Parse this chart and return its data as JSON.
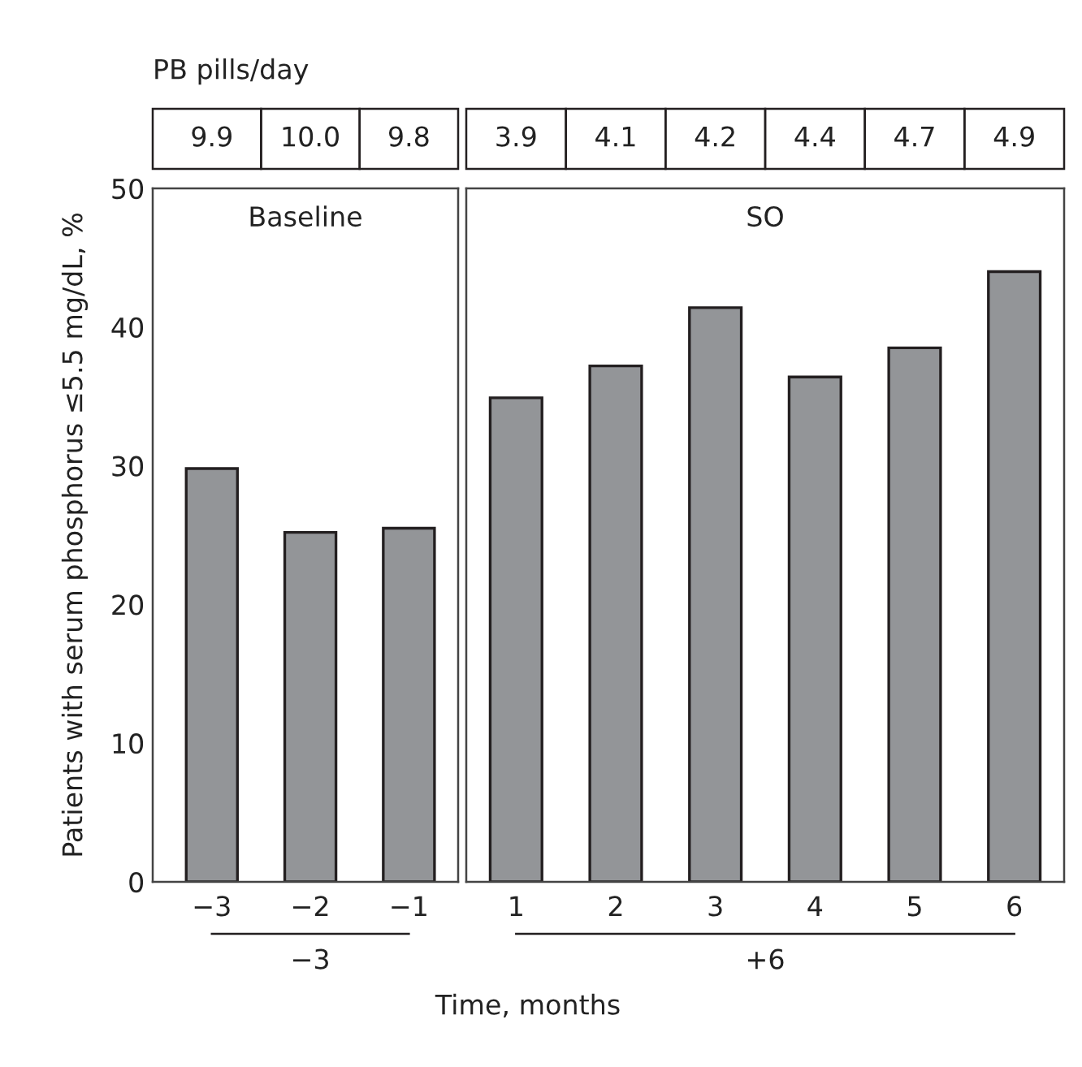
{
  "chart_data": [
    {
      "type": "bar",
      "title": "Baseline",
      "ylabel": "Patients with serum phosphorus ≤5.5 mg/dL, %",
      "xlabel": "Time, months",
      "categories": [
        "−3",
        "−2",
        "−1"
      ],
      "values": [
        29.8,
        25.2,
        25.5
      ],
      "color": "#939598",
      "ylim": [
        0,
        50
      ],
      "yticks": [
        0,
        10,
        20,
        30,
        40,
        50
      ],
      "grid": false,
      "annotations": [
        "PB pills/day",
        "9.9",
        "10.0",
        "9.8",
        "−3"
      ]
    },
    {
      "type": "bar",
      "title": "SO",
      "categories": [
        "1",
        "2",
        "3",
        "4",
        "5",
        "6"
      ],
      "values": [
        34.9,
        37.2,
        41.4,
        36.4,
        38.5,
        44.0
      ],
      "color": "#939598",
      "ylim": [
        0,
        50
      ],
      "yticks": [
        0,
        10,
        20,
        30,
        40,
        50
      ],
      "grid": false,
      "tick_labels": "x",
      "annotations": [
        "3.9",
        "4.1",
        "4.2",
        "4.4",
        "4.7",
        "4.9",
        "+6"
      ]
    }
  ]
}
